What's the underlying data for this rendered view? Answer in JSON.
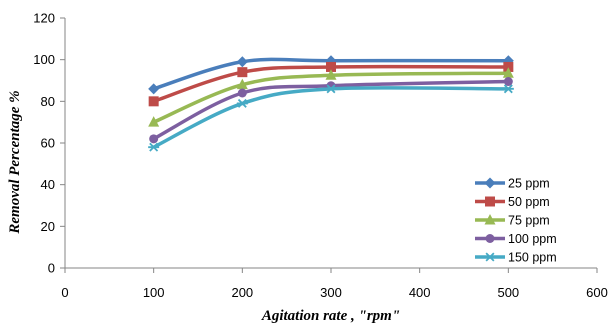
{
  "chart_data": {
    "type": "line",
    "title": "",
    "xlabel": "Agitation rate , \"rpm\"",
    "ylabel": "Removal Percentage %",
    "xlim": [
      0,
      600
    ],
    "ylim": [
      0,
      120
    ],
    "xticks": [
      0,
      100,
      200,
      300,
      400,
      500,
      600
    ],
    "yticks": [
      0,
      20,
      40,
      60,
      80,
      100,
      120
    ],
    "grid": false,
    "smooth": true,
    "legend_position": "bottom-right",
    "x": [
      100,
      200,
      300,
      500
    ],
    "series": [
      {
        "name": "25 ppm",
        "values": [
          86,
          99,
          99.5,
          99.5
        ],
        "color": "#4a7ebb",
        "marker": "diamond"
      },
      {
        "name": "50 ppm",
        "values": [
          80,
          94,
          96.5,
          96.5
        ],
        "color": "#be4b48",
        "marker": "square"
      },
      {
        "name": "75 ppm",
        "values": [
          70,
          88,
          92.5,
          93.5
        ],
        "color": "#98b954",
        "marker": "triangle"
      },
      {
        "name": "100 ppm",
        "values": [
          62,
          84,
          87.5,
          89.5
        ],
        "color": "#7d5fa0",
        "marker": "circle"
      },
      {
        "name": "150 ppm",
        "values": [
          58,
          79,
          86,
          86
        ],
        "color": "#46aac5",
        "marker": "star"
      }
    ]
  }
}
